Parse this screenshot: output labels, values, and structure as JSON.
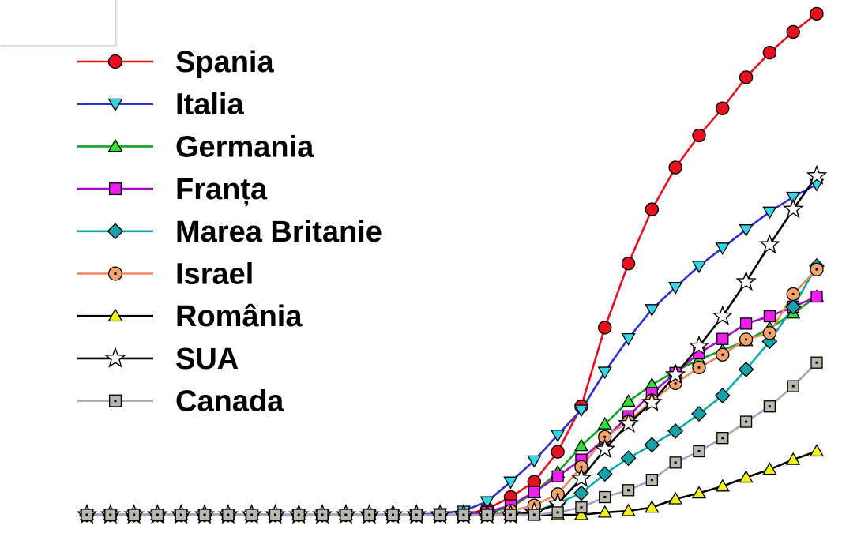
{
  "chart_data": {
    "type": "line",
    "title": "",
    "xlabel": "",
    "ylabel": "",
    "grid": false,
    "legend_position": "top-left",
    "x": [
      1,
      2,
      3,
      4,
      5,
      6,
      7,
      8,
      9,
      10,
      11,
      12,
      13,
      14,
      15,
      16,
      17,
      18,
      19,
      20,
      21,
      22,
      23,
      24,
      25,
      26,
      27,
      28,
      29,
      30,
      31,
      32
    ],
    "ylim": [
      0,
      100
    ],
    "series": [
      {
        "name": "Spania",
        "color": "#e8101c",
        "marker": "circle",
        "values": [
          0,
          0,
          0,
          0,
          0,
          0,
          0,
          0,
          0,
          0,
          0,
          0,
          0,
          0,
          0,
          0,
          0,
          1.2,
          3.6,
          6.7,
          12.8,
          22,
          38,
          51,
          62,
          70.5,
          77,
          82.5,
          88.8,
          93.8,
          98,
          101.7
        ]
      },
      {
        "name": "Italia",
        "color": "#2a31cc",
        "marker": "triangle-down",
        "values": [
          0,
          0,
          0,
          0,
          0,
          0,
          0,
          0,
          0,
          0,
          0,
          0,
          0,
          0,
          0,
          0.3,
          0.8,
          2.7,
          6.7,
          11,
          16.2,
          21.3,
          29,
          35.8,
          41.7,
          46.2,
          50.5,
          54.2,
          57.9,
          61.5,
          64.5,
          67.1
        ]
      },
      {
        "name": "Germania",
        "color": "#12a326",
        "marker": "triangle",
        "values": [
          0,
          0,
          0,
          0,
          0,
          0,
          0,
          0,
          0,
          0,
          0,
          0,
          0,
          0,
          0,
          0,
          0,
          0.5,
          1.5,
          4.5,
          8.6,
          14,
          18.4,
          23,
          26.4,
          29.2,
          31.5,
          33.4,
          35.3,
          37.9,
          40.9,
          44.3
        ]
      },
      {
        "name": "Franța",
        "color": "#a010c8",
        "marker": "square",
        "values": [
          0,
          0,
          0,
          0,
          0,
          0,
          0,
          0,
          0,
          0,
          0,
          0,
          0,
          0,
          0,
          0,
          0,
          0.6,
          1.9,
          4.6,
          7.8,
          11.2,
          15.5,
          20,
          24.7,
          28.8,
          32.8,
          35.7,
          38.8,
          40.3,
          42.2,
          44.3
        ]
      },
      {
        "name": "Marea Britanie",
        "color": "#0aaaa9",
        "marker": "diamond",
        "values": [
          0,
          0,
          0,
          0,
          0,
          0,
          0,
          0,
          0,
          0,
          0,
          0,
          0,
          0,
          0,
          0,
          0,
          0,
          0,
          0.7,
          2.3,
          4.4,
          8.3,
          11.5,
          14.2,
          17,
          20.5,
          24.2,
          29.5,
          35.2,
          42.2,
          50.5
        ]
      },
      {
        "name": "Israel",
        "color": "#e88a62",
        "marker": "circle-dot",
        "values": [
          0,
          0,
          0,
          0,
          0,
          0,
          0,
          0,
          0,
          0,
          0,
          0,
          0,
          0,
          0,
          0,
          0,
          0,
          0.8,
          1.9,
          4.2,
          9.7,
          15.8,
          18.9,
          23.2,
          26.7,
          29.9,
          32.5,
          35.6,
          36.9,
          44.8,
          49.8
        ]
      },
      {
        "name": "România",
        "color": "#000000",
        "marker": "triangle-yellow",
        "values": [
          0,
          0,
          0,
          0,
          0,
          0,
          0,
          0,
          0,
          0,
          0,
          0,
          0,
          0,
          0,
          0,
          0,
          0,
          0,
          0,
          0,
          0,
          0.5,
          0.8,
          1.5,
          3.2,
          4.4,
          5.8,
          7.6,
          9.2,
          11.2,
          12.9
        ]
      },
      {
        "name": "SUA",
        "color": "#000000",
        "marker": "star",
        "values": [
          0,
          0,
          0,
          0,
          0,
          0,
          0,
          0,
          0,
          0,
          0,
          0,
          0,
          0,
          0,
          0,
          0,
          0,
          0,
          0.5,
          2.2,
          7.4,
          13.3,
          18.5,
          22.8,
          28.4,
          34.2,
          40.3,
          47.3,
          54.8,
          62,
          68.8
        ]
      },
      {
        "name": "Canada",
        "color": "#a6a6bc",
        "marker": "square-grey",
        "values": [
          0,
          0,
          0,
          0,
          0,
          0,
          0,
          0,
          0,
          0,
          0,
          0,
          0,
          0,
          0,
          0,
          0,
          0,
          0,
          0,
          0.5,
          1.5,
          3.6,
          5,
          7.1,
          10.6,
          12.9,
          15.6,
          18.9,
          22,
          26.1,
          30.9
        ]
      }
    ]
  }
}
